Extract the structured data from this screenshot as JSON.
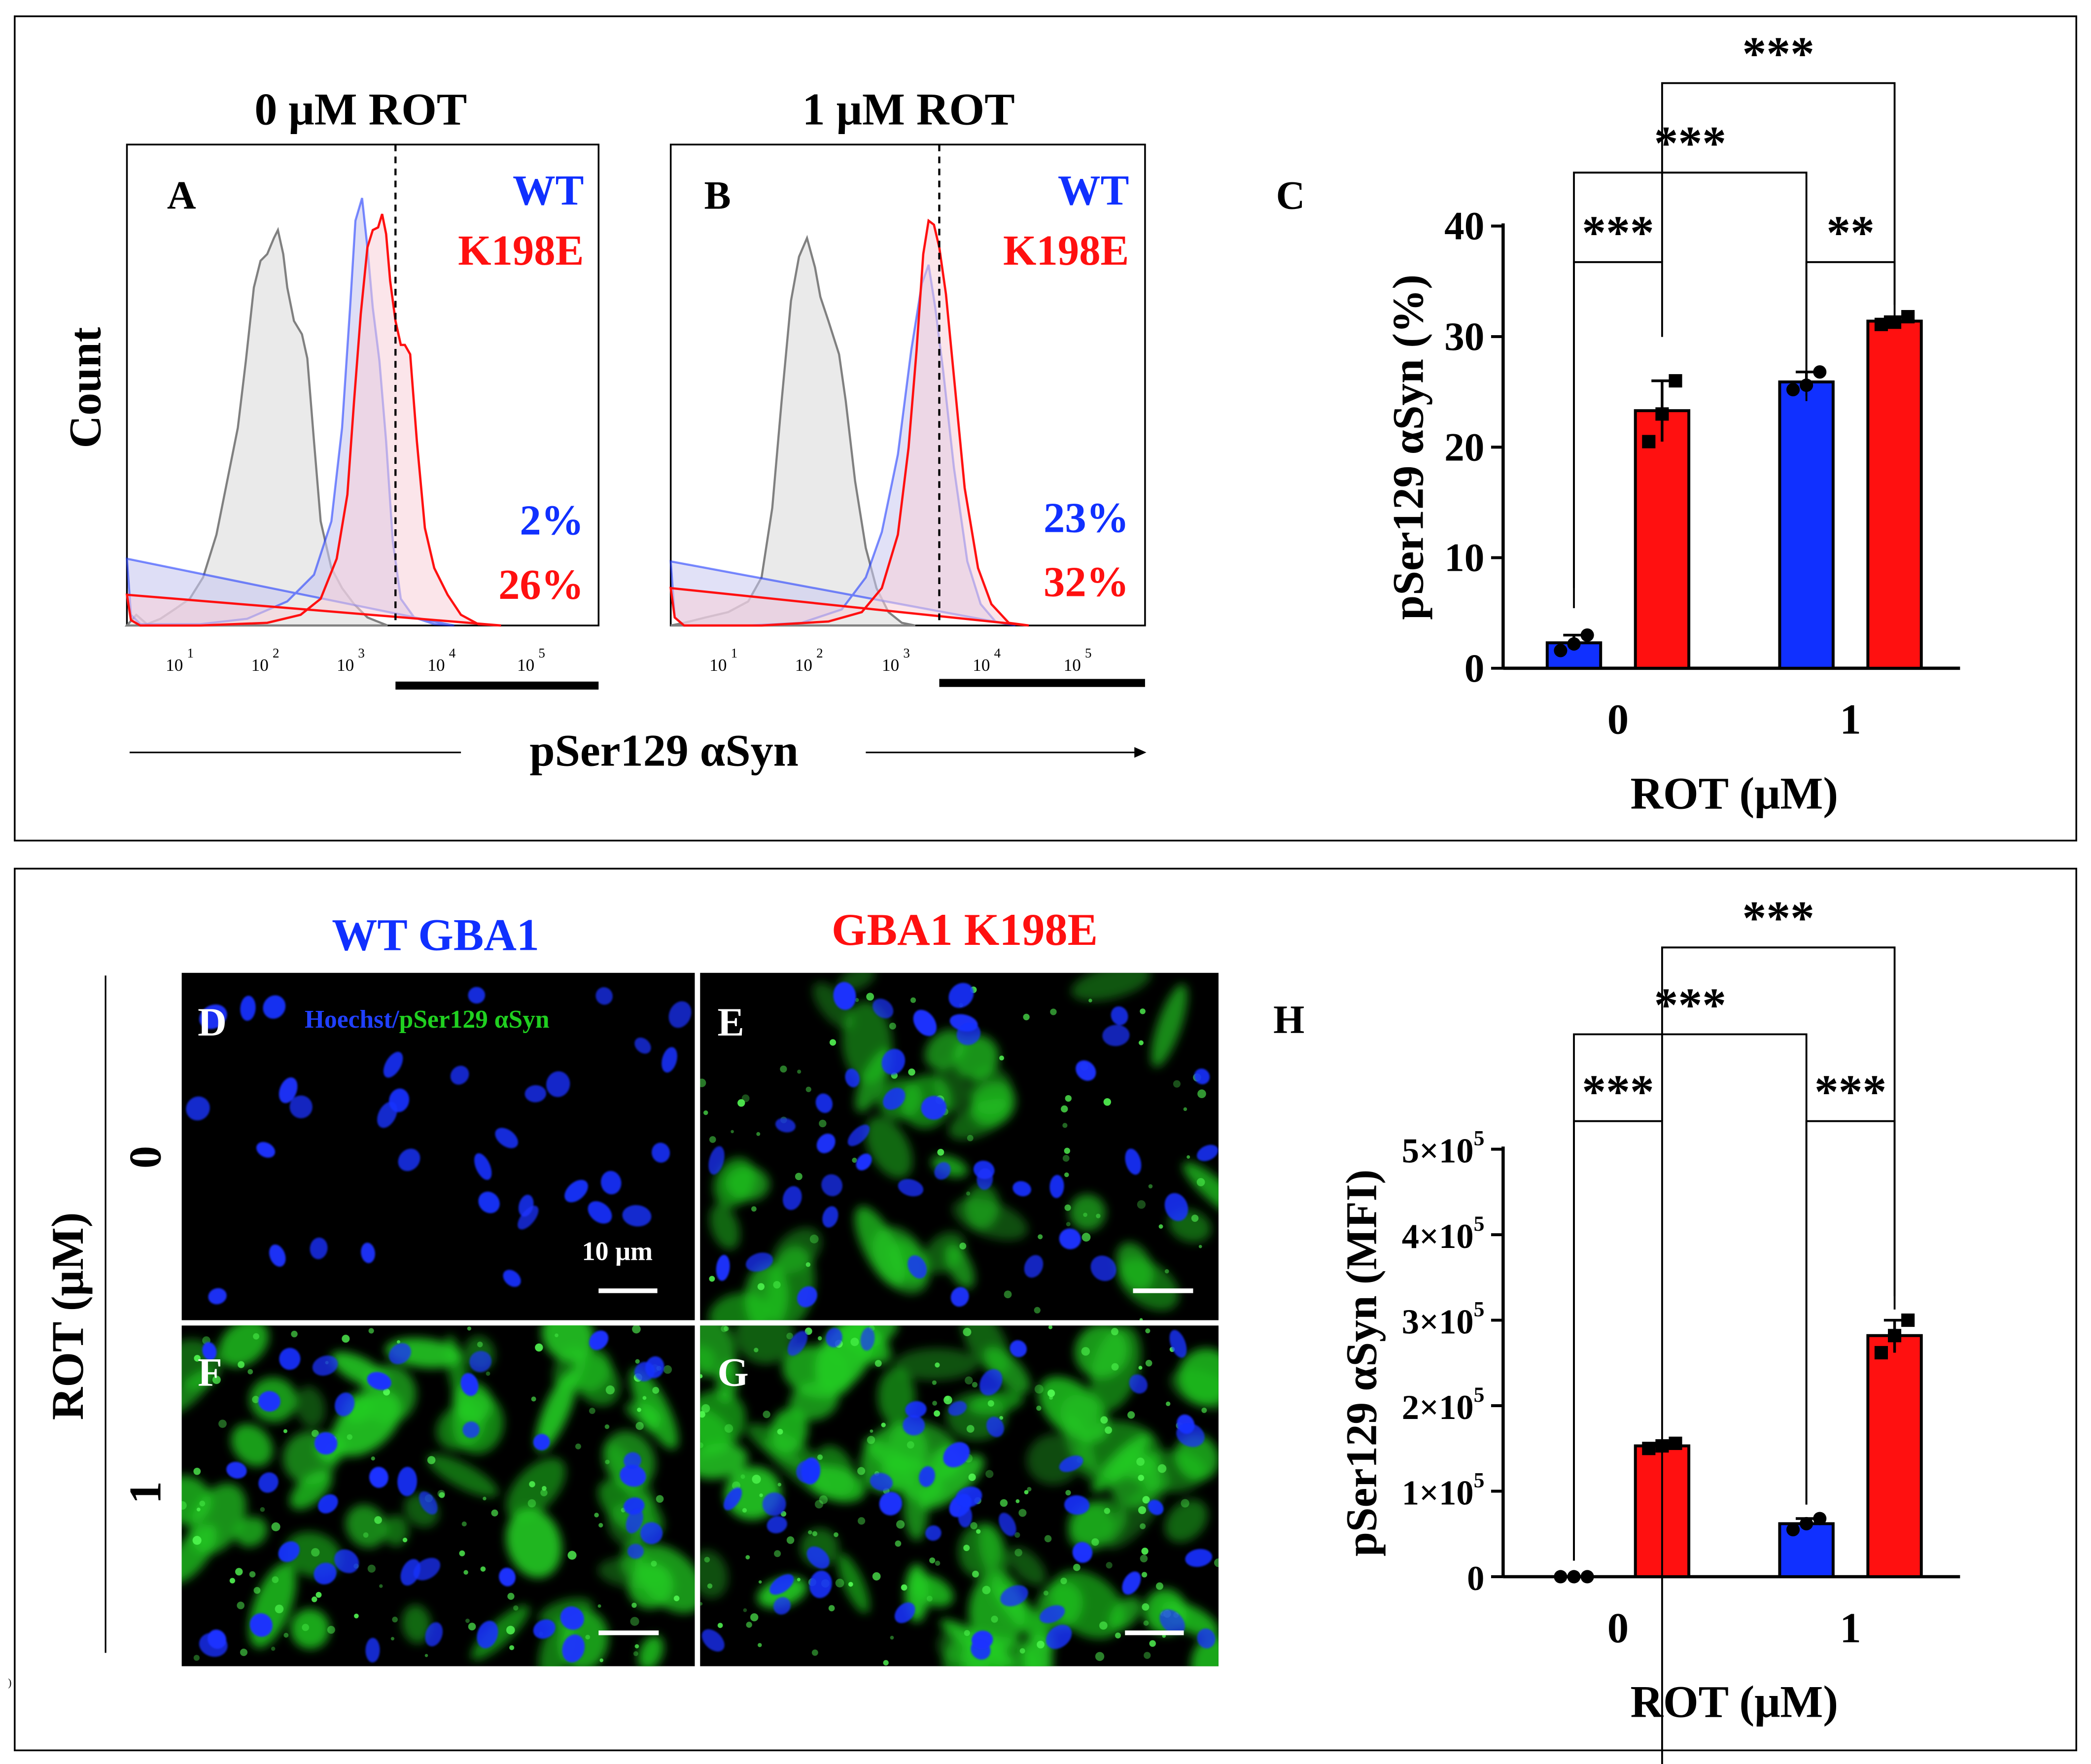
{
  "colors": {
    "wt": "#1030ff",
    "k198e": "#ff1010",
    "control": "#808080",
    "wt_fill": "#c8c8f0",
    "k198e_fill": "#f8d0d8",
    "control_fill": "#e6e6e6"
  },
  "panel_top": {
    "histograms": {
      "x_axis_label": "pSer129  αSyn",
      "y_axis_label": "Count",
      "tick_labels": [
        "10",
        "1",
        "10",
        "2",
        "10",
        "3",
        "10",
        "4",
        "10",
        "5"
      ],
      "panels": [
        {
          "letter": "A",
          "title": "0 μM ROT",
          "legend_wt": "WT",
          "legend_k198e": "K198E",
          "pct_wt": "2%",
          "pct_k198e": "26%"
        },
        {
          "letter": "B",
          "title": "1 μM ROT",
          "legend_wt": "WT",
          "legend_k198e": "K198E",
          "pct_wt": "23%",
          "pct_k198e": "32%"
        }
      ]
    }
  },
  "chart_data": [
    {
      "panel": "C",
      "type": "bar",
      "categories": [
        "0",
        "1"
      ],
      "series": [
        {
          "name": "WT",
          "values": [
            2.3,
            25.9
          ],
          "points": [
            [
              1.6,
              2.2,
              3.0
            ],
            [
              25.2,
              25.6,
              26.8
            ]
          ]
        },
        {
          "name": "K198E",
          "values": [
            23.3,
            31.4
          ],
          "points": [
            [
              20.5,
              23.0,
              26.0
            ],
            [
              31.1,
              31.3,
              31.8
            ]
          ]
        }
      ],
      "xlabel": "ROT (μM)",
      "ylabel": "pSer129 αSyn  (%)",
      "ylim": [
        0,
        40
      ],
      "yticks": [
        "0",
        "10",
        "20",
        "30",
        "40"
      ],
      "significance": [
        "***",
        "**",
        "***",
        "***"
      ]
    },
    {
      "panel": "H",
      "type": "bar",
      "categories": [
        "0",
        "1"
      ],
      "series": [
        {
          "name": "WT",
          "values": [
            0,
            62000
          ],
          "points": [
            [
              0,
              0,
              0
            ],
            [
              55000,
              62000,
              68000
            ]
          ]
        },
        {
          "name": "K198E",
          "values": [
            153000,
            282000
          ],
          "points": [
            [
              150000,
              153000,
              156000
            ],
            [
              262000,
              282000,
              300000
            ]
          ]
        }
      ],
      "xlabel": "ROT (μM)",
      "ylabel": "pSer129 αSyn (MFI)",
      "ylim": [
        0,
        500000
      ],
      "yticks": [
        "0",
        "1×10",
        "2×10",
        "3×10",
        "4×10",
        "5×10"
      ],
      "ytick_exponent": "5",
      "significance": [
        "***",
        "***",
        "***",
        "***"
      ]
    }
  ],
  "panel_bottom": {
    "col_header_wt": "WT GBA1",
    "col_header_k198e": "GBA1  K198E",
    "row_axis_label": "ROT (μM)",
    "row_label_0": "0",
    "row_label_1": "1",
    "stain_label_hoechst": "Hoechst/",
    "stain_label_psyn": "pSer129  αSyn",
    "scale_bar": "10 μm",
    "micrographs": [
      {
        "letter": "D"
      },
      {
        "letter": "E"
      },
      {
        "letter": "F"
      },
      {
        "letter": "G"
      }
    ]
  }
}
